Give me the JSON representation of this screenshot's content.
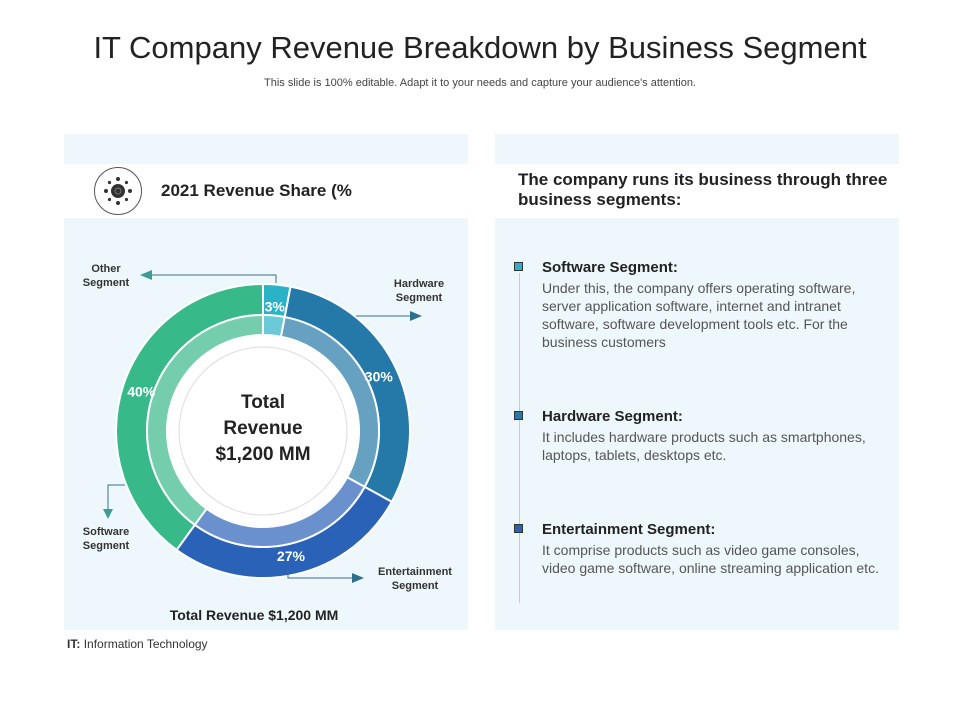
{
  "title": "IT Company Revenue Breakdown by Business Segment",
  "subtitle": "This slide is 100% editable. Adapt it to your needs and capture your audience's attention.",
  "left_panel": {
    "icon": "gear-network-icon",
    "heading": "2021 Revenue Share (%",
    "total_caption": "Total Revenue $1,200 MM"
  },
  "chart_data": {
    "type": "pie",
    "style": "donut",
    "title": "2021 Revenue Share (%",
    "center_text": [
      "Total",
      "Revenue",
      "$1,200 MM"
    ],
    "categories": [
      "Other Segment",
      "Hardware Segment",
      "Entertainment Segment",
      "Software Segment"
    ],
    "values": [
      3,
      30,
      27,
      40
    ],
    "data_labels": [
      "3%",
      "30%",
      "27%",
      "40%"
    ],
    "colors": [
      "#2ab3c6",
      "#2479a8",
      "#2a62b8",
      "#38b98a"
    ],
    "callout_labels": [
      [
        "Other",
        "Segment"
      ],
      [
        "Hardware",
        "Segment"
      ],
      [
        "Entertainment",
        "Segment"
      ],
      [
        "Software",
        "Segment"
      ]
    ]
  },
  "right_panel": {
    "heading": "The company runs its business through three business segments:",
    "segments": [
      {
        "title": "Software Segment:",
        "text": "Under this, the company offers operating software, server application software, internet and intranet software, software development tools etc. For the business customers",
        "color": "#2ab3c6"
      },
      {
        "title": "Hardware Segment:",
        "text": "It includes hardware products such as smartphones, laptops, tablets, desktops etc.",
        "color": "#2479a8"
      },
      {
        "title": "Entertainment Segment:",
        "text": "It comprise products such as video game consoles, video game software, online streaming application etc.",
        "color": "#2a62b8"
      }
    ]
  },
  "footnote": {
    "abbr": "IT:",
    "text": "Information  Technology"
  }
}
